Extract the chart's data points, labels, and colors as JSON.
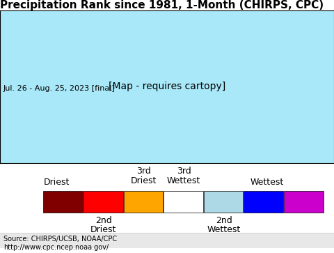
{
  "title": "Precipitation Rank since 1981, 1-Month (CHIRPS, CPC)",
  "subtitle": "Jul. 26 - Aug. 25, 2023 [final]",
  "map_bg_color": "#a8e8f8",
  "legend_bg_color": "#f0f0f0",
  "source_text": "Source: CHIRPS/UCSB, NOAA/CPC\nhttp://www.cpc.ncep.noaa.gov/",
  "legend_colors": [
    "#800000",
    "#ff0000",
    "#ffa500",
    "#ffffff",
    "#add8e6",
    "#0000ff",
    "#cc00cc"
  ],
  "legend_labels_top": [
    "Driest",
    "",
    "3rd\nDriest",
    "3rd\nWettest",
    "",
    "Wettest"
  ],
  "legend_labels_bottom": [
    "",
    "2nd\nDriest",
    "",
    "",
    "2nd\nWettest",
    ""
  ],
  "title_fontsize": 11,
  "subtitle_fontsize": 8,
  "source_fontsize": 7,
  "legend_label_fontsize": 9
}
